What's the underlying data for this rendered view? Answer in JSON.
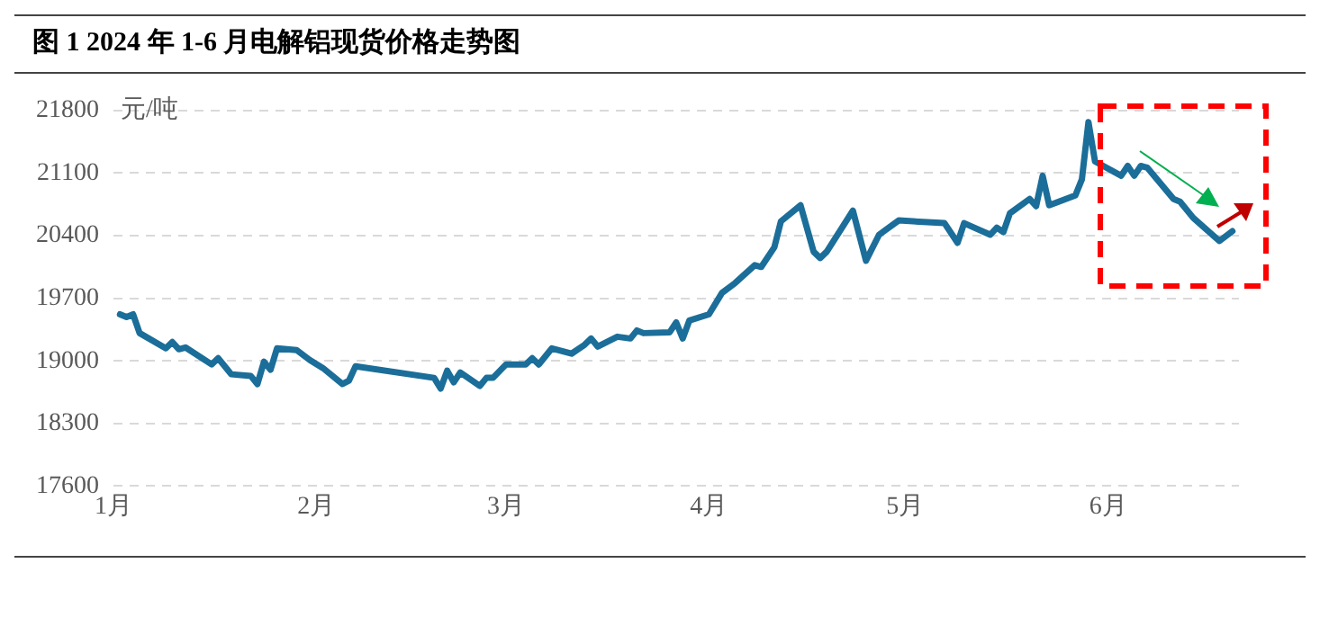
{
  "chart_data": {
    "type": "line",
    "title": "图 1 2024 年 1-6 月电解铝现货价格走势图",
    "ylabel": "元/吨",
    "x": [
      "2024-01-02",
      "2024-01-03",
      "2024-01-04",
      "2024-01-05",
      "2024-01-09",
      "2024-01-10",
      "2024-01-11",
      "2024-01-12",
      "2024-01-16",
      "2024-01-17",
      "2024-01-19",
      "2024-01-22",
      "2024-01-23",
      "2024-01-24",
      "2024-01-25",
      "2024-01-26",
      "2024-01-29",
      "2024-01-31",
      "2024-02-02",
      "2024-02-05",
      "2024-02-06",
      "2024-02-07",
      "2024-02-19",
      "2024-02-20",
      "2024-02-21",
      "2024-02-22",
      "2024-02-23",
      "2024-02-26",
      "2024-02-27",
      "2024-02-28",
      "2024-03-01",
      "2024-03-04",
      "2024-03-05",
      "2024-03-06",
      "2024-03-08",
      "2024-03-11",
      "2024-03-13",
      "2024-03-14",
      "2024-03-15",
      "2024-03-18",
      "2024-03-20",
      "2024-03-21",
      "2024-03-22",
      "2024-03-26",
      "2024-03-27",
      "2024-03-28",
      "2024-03-29",
      "2024-04-01",
      "2024-04-03",
      "2024-04-05",
      "2024-04-08",
      "2024-04-09",
      "2024-04-11",
      "2024-04-12",
      "2024-04-15",
      "2024-04-17",
      "2024-04-18",
      "2024-04-19",
      "2024-04-23",
      "2024-04-25",
      "2024-04-27",
      "2024-04-30",
      "2024-05-07",
      "2024-05-09",
      "2024-05-10",
      "2024-05-14",
      "2024-05-15",
      "2024-05-16",
      "2024-05-17",
      "2024-05-20",
      "2024-05-21",
      "2024-05-22",
      "2024-05-23",
      "2024-05-27",
      "2024-05-28",
      "2024-05-29",
      "2024-05-30",
      "2024-06-03",
      "2024-06-04",
      "2024-06-05",
      "2024-06-06",
      "2024-06-07",
      "2024-06-11",
      "2024-06-12",
      "2024-06-14",
      "2024-06-18",
      "2024-06-20"
    ],
    "series": [
      {
        "color": "#1b6e99",
        "values": [
          19520,
          19490,
          19520,
          19310,
          19140,
          19210,
          19130,
          19150,
          18960,
          19030,
          18850,
          18830,
          18740,
          18990,
          18900,
          19140,
          19120,
          19010,
          18920,
          18740,
          18780,
          18940,
          18810,
          18690,
          18890,
          18760,
          18870,
          18720,
          18810,
          18810,
          18960,
          18960,
          19030,
          18960,
          19140,
          19080,
          19180,
          19250,
          19160,
          19270,
          19250,
          19340,
          19310,
          19320,
          19430,
          19250,
          19450,
          19520,
          19760,
          19870,
          20070,
          20050,
          20270,
          20560,
          20740,
          20220,
          20150,
          20220,
          20680,
          20120,
          20410,
          20570,
          20540,
          20320,
          20540,
          20410,
          20490,
          20440,
          20650,
          20810,
          20730,
          21070,
          20740,
          20850,
          21030,
          21670,
          21230,
          21070,
          21180,
          21070,
          21180,
          21160,
          20810,
          20780,
          20600,
          20340,
          20450
        ]
      }
    ],
    "xlim": [
      "2024-01-01",
      "2024-06-21"
    ],
    "xticks": [
      {
        "value": "2024-01-01",
        "label": "1月"
      },
      {
        "value": "2024-02-01",
        "label": "2月"
      },
      {
        "value": "2024-03-01",
        "label": "3月"
      },
      {
        "value": "2024-04-01",
        "label": "4月"
      },
      {
        "value": "2024-05-01",
        "label": "5月"
      },
      {
        "value": "2024-06-01",
        "label": "6月"
      }
    ],
    "ylim": [
      17600,
      21800
    ],
    "yticks": [
      17600,
      18300,
      19000,
      19700,
      20400,
      21100,
      21800
    ],
    "grid": "y",
    "marker": "none",
    "line_style": "solid"
  }
}
